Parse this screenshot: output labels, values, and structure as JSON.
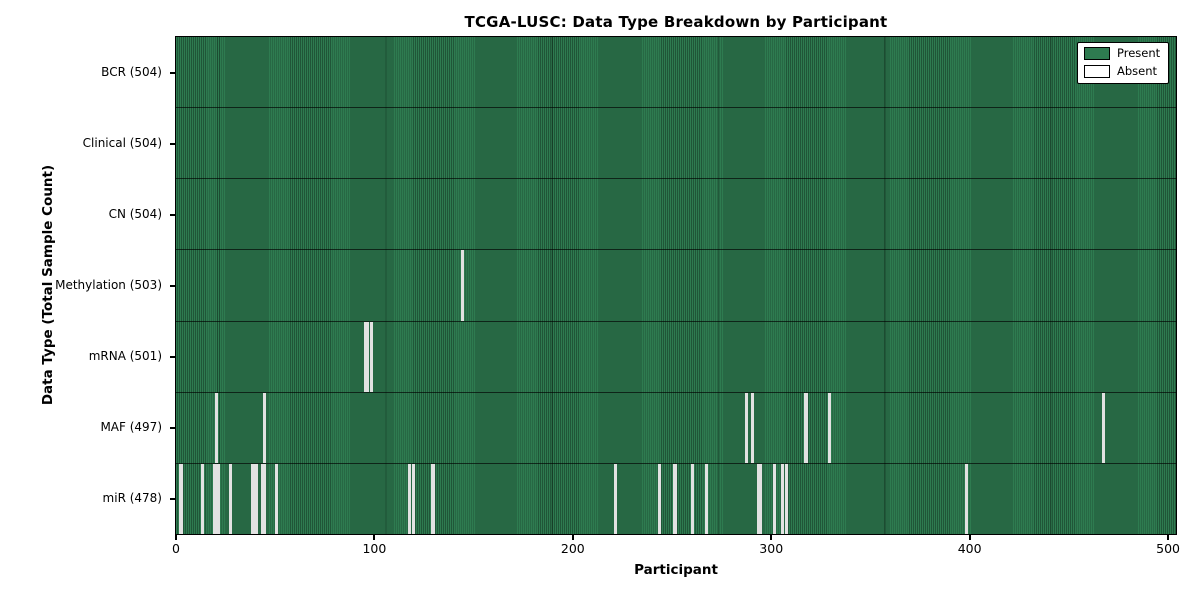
{
  "title": "TCGA-LUSC: Data Type Breakdown by Participant",
  "axes": {
    "xlabel": "Participant",
    "ylabel": "Data Type (Total Sample Count)",
    "xticks": [
      0,
      100,
      200,
      300,
      400,
      500
    ]
  },
  "legend": {
    "items": [
      {
        "name": "present",
        "label": "Present",
        "color": "#2e7b50"
      },
      {
        "name": "absent",
        "label": "Absent",
        "color": "#ffffff"
      }
    ]
  },
  "colors": {
    "present": "#2e7b50",
    "present_edge_dark": "#1f5f3c",
    "absent": "#e2e2e2",
    "spine": "#000000"
  },
  "chart_data": {
    "type": "heatmap",
    "title": "TCGA-LUSC: Data Type Breakdown by Participant",
    "xlabel": "Participant",
    "ylabel": "Data Type (Total Sample Count)",
    "x_range": [
      0,
      504
    ],
    "n_participants": 504,
    "legend": [
      "Present",
      "Absent"
    ],
    "legend_position": "upper right",
    "rows": [
      {
        "name": "BCR",
        "total": 504,
        "display": "BCR (504)",
        "absent_participants": []
      },
      {
        "name": "Clinical",
        "total": 504,
        "display": "Clinical (504)",
        "absent_participants": []
      },
      {
        "name": "CN",
        "total": 504,
        "display": "CN (504)",
        "absent_participants": []
      },
      {
        "name": "Methylation",
        "total": 503,
        "display": "Methylation (503)",
        "absent_participants": [
          144
        ]
      },
      {
        "name": "mRNA",
        "total": 501,
        "display": "mRNA (501)",
        "absent_participants": [
          95,
          96,
          98
        ]
      },
      {
        "name": "MAF",
        "total": 497,
        "display": "MAF (497)",
        "absent_participants": [
          20,
          44,
          287,
          290,
          317,
          329,
          467
        ]
      },
      {
        "name": "miR",
        "total": 478,
        "display": "miR (478)",
        "absent_participants": [
          2,
          13,
          19,
          20,
          21,
          27,
          38,
          39,
          40,
          43,
          44,
          50,
          117,
          119,
          129,
          221,
          243,
          251,
          260,
          267,
          293,
          294,
          301,
          305,
          307,
          398
        ]
      }
    ]
  }
}
